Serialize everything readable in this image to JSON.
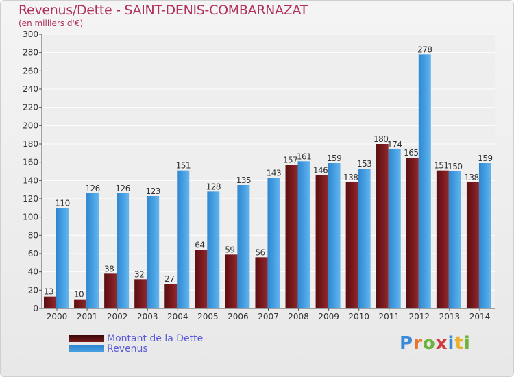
{
  "title": "Revenus/Dette - SAINT-DENIS-COMBARNAZAT",
  "subtitle": "(en milliers d'€)",
  "colors": {
    "dette": "#7a1a1e",
    "revenus": "#4aa3e4",
    "title": "#b0305a",
    "legend_text": "#5a5ad8"
  },
  "logo": {
    "letters": [
      "P",
      "r",
      "o",
      "x",
      "i",
      "t",
      "i"
    ],
    "colors": [
      "#3a8ad8",
      "#e8732a",
      "#6bb33a",
      "#d23a3a",
      "#3a8ad8",
      "#e8b12a",
      "#6bb33a"
    ]
  },
  "chart_data": {
    "type": "bar",
    "categories": [
      "2000",
      "2001",
      "2002",
      "2003",
      "2004",
      "2005",
      "2006",
      "2007",
      "2008",
      "2009",
      "2010",
      "2011",
      "2012",
      "2013",
      "2014"
    ],
    "series": [
      {
        "name": "Montant de la Dette",
        "values": [
          13,
          10,
          38,
          32,
          27,
          64,
          59,
          56,
          157,
          146,
          138,
          180,
          165,
          151,
          138
        ]
      },
      {
        "name": "Revenus",
        "values": [
          110,
          126,
          126,
          123,
          151,
          128,
          135,
          143,
          161,
          159,
          153,
          174,
          278,
          150,
          159
        ]
      }
    ],
    "ylim": [
      0,
      300
    ],
    "yticks": [
      0,
      20,
      40,
      60,
      80,
      100,
      120,
      140,
      160,
      180,
      200,
      220,
      240,
      260,
      280,
      300
    ],
    "grid": true,
    "legend": "bottom-left"
  }
}
